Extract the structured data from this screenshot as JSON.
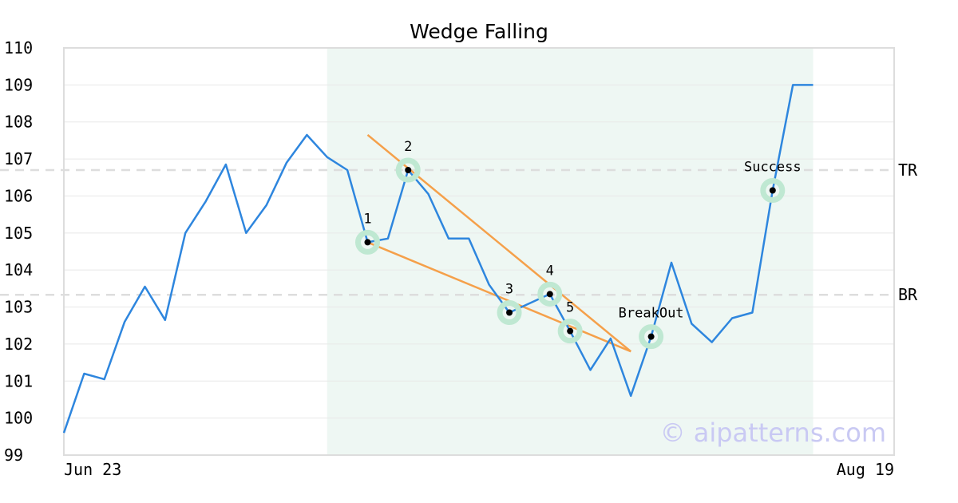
{
  "chart_data": {
    "type": "line",
    "title": "Wedge Falling",
    "ylim": [
      99,
      110
    ],
    "y_ticks": [
      "99",
      "100",
      "101",
      "102",
      "103",
      "104",
      "105",
      "106",
      "107",
      "108",
      "109",
      "110"
    ],
    "x_tick_labels": [
      "Jun 23",
      "Aug 19"
    ],
    "x_index_range": [
      0,
      41
    ],
    "grid": true,
    "series": [
      {
        "values": [
          99.6,
          101.2,
          101.05,
          102.6,
          103.55,
          102.65,
          105.0,
          105.85,
          106.85,
          105.0,
          105.75,
          106.9,
          107.65,
          107.05,
          106.7,
          104.75,
          104.85,
          106.7,
          106.05,
          104.85,
          104.85,
          103.6,
          102.85,
          103.1,
          103.35,
          102.35,
          101.3,
          102.15,
          100.6,
          102.2,
          104.2,
          102.55,
          102.05,
          102.7,
          102.85,
          106.15,
          109.0,
          109.0
        ]
      }
    ],
    "shaded_region": {
      "from_index": 13,
      "to_index": 37
    },
    "levels": [
      {
        "label": "TR",
        "value": 106.7
      },
      {
        "label": "BR",
        "value": 103.33
      }
    ],
    "annotations": [
      {
        "label": "1",
        "index": 15,
        "value": 104.75
      },
      {
        "label": "2",
        "index": 17,
        "value": 106.7
      },
      {
        "label": "3",
        "index": 22,
        "value": 102.85
      },
      {
        "label": "4",
        "index": 24,
        "value": 103.35
      },
      {
        "label": "5",
        "index": 25,
        "value": 102.35
      },
      {
        "label": "BreakOut",
        "index": 29,
        "value": 102.2
      },
      {
        "label": "Success",
        "index": 35,
        "value": 106.15
      }
    ],
    "trendlines": [
      {
        "name": "upper",
        "from": [
          15,
          107.65
        ],
        "to": [
          28,
          101.8
        ]
      },
      {
        "name": "lower",
        "from": [
          15,
          104.75
        ],
        "to": [
          28,
          101.8
        ]
      }
    ],
    "watermark": "© aipatterns.com",
    "colors": {
      "line": "#2e86de",
      "trendline": "#f5a04a",
      "shade": "#eef7f3",
      "marker_halo": "#bfe8d2",
      "grid": "#e8e8e8",
      "level_line": "#dddddd",
      "frame": "#dddddd"
    }
  }
}
